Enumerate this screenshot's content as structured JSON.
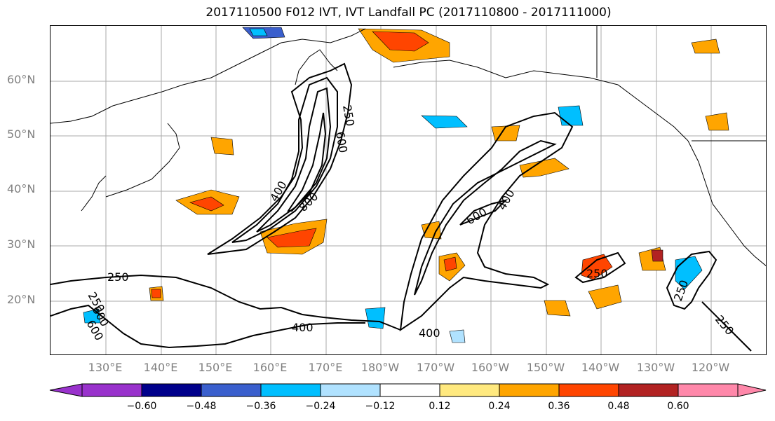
{
  "title": "2017110500 F012 IVT, IVT Landfall PC (2017110800 - 2017111000)",
  "lat_labels": [
    "60°N",
    "50°N",
    "40°N",
    "30°N",
    "20°N"
  ],
  "lon_labels": [
    "130°E",
    "140°E",
    "150°E",
    "160°E",
    "170°E",
    "180°W",
    "170°W",
    "160°W",
    "150°W",
    "140°W",
    "130°W",
    "120°W"
  ],
  "contour_labels": [
    "250",
    "600",
    "400",
    "800",
    "600",
    "400",
    "250",
    "400",
    "600",
    "400",
    "250",
    "250",
    "250",
    "250",
    "600"
  ],
  "colorbar": {
    "ticks": [
      "−0.60",
      "−0.48",
      "−0.36",
      "−0.24",
      "−0.12",
      "0.12",
      "0.24",
      "0.36",
      "0.48",
      "0.60"
    ],
    "colors": [
      "#9932cc",
      "#00008b",
      "#3a5fcd",
      "#00bfff",
      "#b0e2ff",
      "#ffffff",
      "#ffe97f",
      "#ffa500",
      "#ff4500",
      "#b22222",
      "#ff88aa"
    ]
  }
}
